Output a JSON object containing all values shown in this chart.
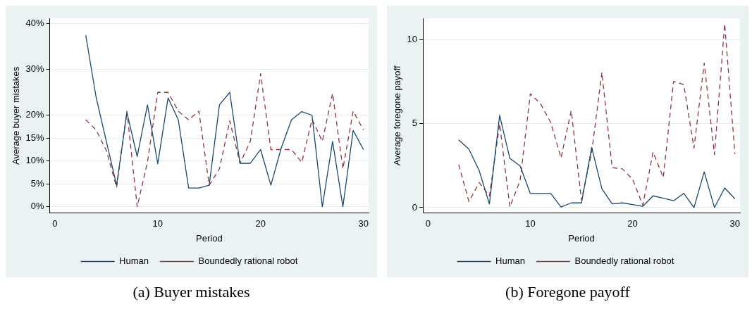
{
  "chart_data": [
    {
      "type": "line",
      "xlabel": "Period",
      "ylabel": "Average buyer mistakes",
      "annotations": [
        "(a) Buyer mistakes"
      ],
      "x": [
        3,
        4,
        5,
        6,
        7,
        8,
        9,
        10,
        11,
        12,
        13,
        14,
        15,
        16,
        17,
        18,
        19,
        20,
        21,
        22,
        23,
        24,
        25,
        26,
        27,
        28,
        29,
        30
      ],
      "series": [
        {
          "name": "Human",
          "color": "#1a476f",
          "line_style": "solid",
          "values": [
            37.5,
            24.0,
            14.3,
            4.7,
            20.6,
            11.0,
            22.3,
            9.4,
            23.8,
            19.0,
            4.1,
            4.1,
            4.7,
            22.3,
            25.0,
            9.5,
            9.5,
            12.5,
            4.7,
            12.8,
            19.0,
            20.8,
            20.0,
            0,
            14.3,
            0,
            16.7,
            12.5
          ]
        },
        {
          "name": "Boundedly rational robot",
          "color": "#90353b",
          "line_style": "dashed",
          "values": [
            19.0,
            16.8,
            12.3,
            4.2,
            20.9,
            0,
            9.8,
            25.0,
            25.0,
            20.9,
            19.0,
            20.9,
            4.7,
            8.3,
            18.8,
            9.5,
            14.3,
            29.1,
            12.5,
            12.5,
            12.5,
            9.7,
            19.1,
            14.3,
            24.8,
            8.3,
            20.9,
            16.8
          ]
        }
      ],
      "xlim": [
        -0.5,
        30.5
      ],
      "xticks": [
        0,
        10,
        20,
        30
      ],
      "ylim": [
        -1.4,
        41.2
      ],
      "yticks": [
        {
          "value": 0,
          "label": "0%"
        },
        {
          "value": 5,
          "label": "5%"
        },
        {
          "value": 10,
          "label": "10%"
        },
        {
          "value": 15,
          "label": "15%"
        },
        {
          "value": 20,
          "label": "20%"
        },
        {
          "value": 30,
          "label": "30%"
        },
        {
          "value": 40,
          "label": "40%"
        }
      ],
      "grid": "y",
      "legend": "bottom",
      "marker": "none"
    },
    {
      "type": "line",
      "xlabel": "Period",
      "ylabel": "Average foregone payoff",
      "annotations": [
        "(b) Foregone payoff"
      ],
      "x": [
        3,
        4,
        5,
        6,
        7,
        8,
        9,
        10,
        11,
        12,
        13,
        14,
        15,
        16,
        17,
        18,
        19,
        20,
        21,
        22,
        23,
        24,
        25,
        26,
        27,
        28,
        29,
        30
      ],
      "series": [
        {
          "name": "Human",
          "color": "#1a476f",
          "line_style": "solid",
          "values": [
            4.03,
            3.48,
            2.21,
            0.21,
            5.5,
            2.93,
            2.48,
            0.84,
            0.84,
            0.84,
            0.03,
            0.28,
            0.28,
            3.59,
            1.11,
            0.22,
            0.28,
            0.18,
            0.08,
            0.7,
            0.56,
            0.41,
            0.85,
            0,
            2.13,
            0,
            1.17,
            0.52
          ]
        },
        {
          "name": "Boundedly rational robot",
          "color": "#90353b",
          "line_style": "dashed",
          "values": [
            2.56,
            0.36,
            1.49,
            0.69,
            4.99,
            0.04,
            1.6,
            6.78,
            6.19,
            5.06,
            2.96,
            5.78,
            0.45,
            3.3,
            8.06,
            2.38,
            2.31,
            1.69,
            0.14,
            3.31,
            1.79,
            7.52,
            7.33,
            3.55,
            8.61,
            3.16,
            10.95,
            3.2
          ]
        }
      ],
      "xlim": [
        -0.5,
        30.5
      ],
      "xticks": [
        0,
        10,
        20,
        30
      ],
      "ylim": [
        -0.33,
        11.28
      ],
      "yticks": [
        0,
        5,
        10
      ],
      "grid": "y",
      "legend": "bottom",
      "marker": "none"
    }
  ]
}
